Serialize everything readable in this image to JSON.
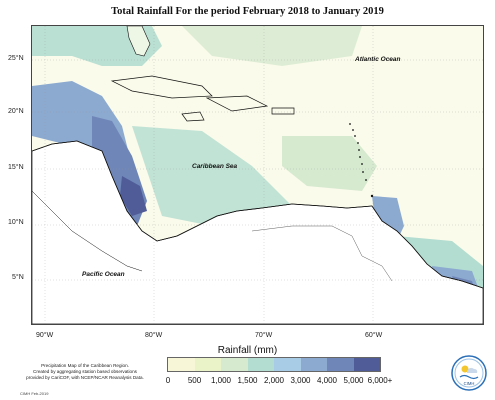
{
  "title": "Total Rainfall For the period February 2018 to January 2019",
  "map": {
    "lat_labels": [
      "25°N",
      "20°N",
      "15°N",
      "10°N",
      "5°N"
    ],
    "lon_labels": [
      "90°W",
      "80°W",
      "70°W",
      "60°W"
    ],
    "places": {
      "atlantic": "Atlantic Ocean",
      "caribbean": "Caribbean Sea",
      "pacific": "Pacific Ocean"
    },
    "colors": {
      "ocean_base": "#fbfbeb",
      "land": "#ffffff",
      "coast": "#111111"
    }
  },
  "legend": {
    "title": "Rainfall (mm)",
    "ticks": [
      "0",
      "500",
      "1,000",
      "1,500",
      "2,000",
      "3,000",
      "4,000",
      "5,000",
      "6,000+"
    ],
    "colors": [
      "#f7f6d7",
      "#eaf2c8",
      "#d6ead0",
      "#b3ddd0",
      "#a8cce6",
      "#8caad0",
      "#6f86b8",
      "#4f5c98"
    ]
  },
  "credit": {
    "line1": "Precipitation Map of the Caribbean Region.",
    "line2": "Created by aggregating station based observations",
    "line3": "provided by CariCOF, with NCEP/NCAR Reanalysis Data.",
    "stamp": "CIMH Feb-2019"
  },
  "logo": {
    "icon": "cimh-logo-icon",
    "text": "CIMH"
  }
}
